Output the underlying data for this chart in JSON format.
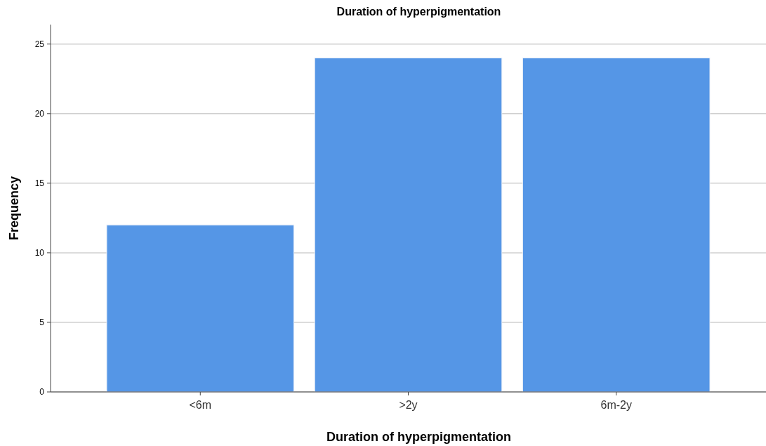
{
  "chart_data": {
    "type": "bar",
    "title": "Duration of hyperpigmentation",
    "xlabel": "Duration of hyperpigmentation",
    "ylabel": "Frequency",
    "categories": [
      "<6m",
      ">2y",
      "6m-2y"
    ],
    "values": [
      12,
      24,
      24
    ],
    "color": "#5596e6",
    "ylim": [
      0,
      26.4
    ],
    "yticks": [
      0,
      5,
      10,
      15,
      20,
      25
    ],
    "grid": "y"
  }
}
